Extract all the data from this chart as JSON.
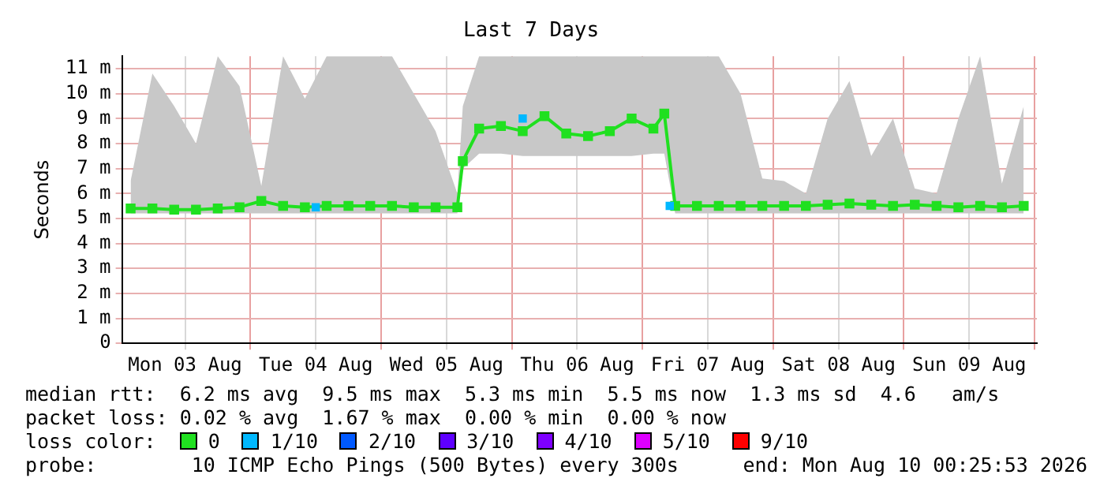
{
  "chart_data": {
    "type": "line",
    "title": "Last 7 Days",
    "ylabel": "Seconds",
    "x": [
      "2026-08-03T02:00",
      "2026-08-03T06:00",
      "2026-08-03T10:00",
      "2026-08-03T14:00",
      "2026-08-03T18:00",
      "2026-08-03T22:00",
      "2026-08-04T02:00",
      "2026-08-04T06:00",
      "2026-08-04T10:00",
      "2026-08-04T14:00",
      "2026-08-04T18:00",
      "2026-08-04T22:00",
      "2026-08-05T02:00",
      "2026-08-05T06:00",
      "2026-08-05T10:00",
      "2026-08-05T14:00",
      "2026-08-05T15:00",
      "2026-08-05T18:00",
      "2026-08-05T22:00",
      "2026-08-06T02:00",
      "2026-08-06T06:00",
      "2026-08-06T10:00",
      "2026-08-06T14:00",
      "2026-08-06T18:00",
      "2026-08-06T22:00",
      "2026-08-07T02:00",
      "2026-08-07T04:00",
      "2026-08-07T06:00",
      "2026-08-07T10:00",
      "2026-08-07T14:00",
      "2026-08-07T18:00",
      "2026-08-07T22:00",
      "2026-08-08T02:00",
      "2026-08-08T06:00",
      "2026-08-08T10:00",
      "2026-08-08T14:00",
      "2026-08-08T18:00",
      "2026-08-08T22:00",
      "2026-08-09T02:00",
      "2026-08-09T06:00",
      "2026-08-09T10:00",
      "2026-08-09T14:00",
      "2026-08-09T18:00",
      "2026-08-09T22:00"
    ],
    "series": [
      {
        "name": "0",
        "color": "#20e020",
        "values": [
          5.4,
          5.4,
          5.35,
          5.35,
          5.4,
          5.45,
          5.7,
          5.5,
          5.45,
          5.5,
          5.5,
          5.5,
          5.5,
          5.45,
          5.45,
          5.45,
          7.3,
          8.6,
          8.7,
          8.5,
          9.1,
          8.4,
          8.3,
          8.5,
          9.0,
          8.6,
          9.2,
          5.5,
          5.5,
          5.5,
          5.5,
          5.5,
          5.5,
          5.5,
          5.55,
          5.6,
          5.55,
          5.5,
          5.55,
          5.5,
          5.45,
          5.5,
          5.45,
          5.5
        ],
        "lower": [
          5.2,
          5.2,
          5.2,
          5.2,
          5.2,
          5.2,
          5.2,
          5.2,
          5.2,
          5.2,
          5.2,
          5.2,
          5.2,
          5.2,
          5.2,
          5.2,
          7.0,
          7.6,
          7.6,
          7.5,
          7.5,
          7.5,
          7.5,
          7.5,
          7.5,
          7.6,
          7.6,
          5.2,
          5.2,
          5.2,
          5.2,
          5.2,
          5.2,
          5.2,
          5.2,
          5.2,
          5.2,
          5.2,
          5.2,
          5.2,
          5.2,
          5.2,
          5.2,
          5.2
        ],
        "upper": [
          6.5,
          10.8,
          9.5,
          8.0,
          11.5,
          10.3,
          6.3,
          11.5,
          9.8,
          11.5,
          11.5,
          11.5,
          11.5,
          10.0,
          8.5,
          6.0,
          9.5,
          11.5,
          11.5,
          11.5,
          11.5,
          11.5,
          11.5,
          11.5,
          11.5,
          11.5,
          11.5,
          11.5,
          11.5,
          11.5,
          10.0,
          6.6,
          6.5,
          6.0,
          9.0,
          10.5,
          7.5,
          9.0,
          6.2,
          6.0,
          9.0,
          11.5,
          6.4,
          9.5
        ]
      },
      {
        "name": "1/10",
        "color": "#00b8ff",
        "type": "scatter",
        "x": [
          "2026-08-04T12:00",
          "2026-08-06T02:00",
          "2026-08-07T05:00"
        ],
        "values": [
          5.45,
          9.0,
          5.5
        ]
      },
      {
        "name": "2/10",
        "color": "#0059ff",
        "type": "scatter",
        "values": [
          null,
          null,
          null,
          null,
          null,
          null,
          null,
          null,
          null,
          null,
          null,
          null,
          null,
          null,
          null,
          null,
          null,
          null,
          null,
          null,
          null,
          null,
          null,
          null,
          null,
          null,
          null,
          null,
          null,
          null,
          null,
          null,
          null,
          null,
          null,
          null,
          null,
          null,
          null,
          null,
          null,
          null,
          null,
          null
        ]
      },
      {
        "name": "3/10",
        "color": "#5e00ff",
        "type": "scatter",
        "values": [
          null,
          null,
          null,
          null,
          null,
          null,
          null,
          null,
          null,
          null,
          null,
          null,
          null,
          null,
          null,
          null,
          null,
          null,
          null,
          null,
          null,
          null,
          null,
          null,
          null,
          null,
          null,
          null,
          null,
          null,
          null,
          null,
          null,
          null,
          null,
          null,
          null,
          null,
          null,
          null,
          null,
          null,
          null,
          null
        ]
      },
      {
        "name": "4/10",
        "color": "#7e00ff",
        "type": "scatter",
        "values": [
          null,
          null,
          null,
          null,
          null,
          null,
          null,
          null,
          null,
          null,
          null,
          null,
          null,
          null,
          null,
          null,
          null,
          null,
          null,
          null,
          null,
          null,
          null,
          null,
          null,
          null,
          null,
          null,
          null,
          null,
          null,
          null,
          null,
          null,
          null,
          null,
          null,
          null,
          null,
          null,
          null,
          null,
          null,
          null
        ]
      },
      {
        "name": "5/10",
        "color": "#dd00ff",
        "type": "scatter",
        "values": [
          null,
          null,
          null,
          null,
          null,
          null,
          null,
          null,
          null,
          null,
          null,
          null,
          null,
          null,
          null,
          null,
          null,
          null,
          null,
          null,
          null,
          null,
          null,
          null,
          null,
          null,
          null,
          null,
          null,
          null,
          null,
          null,
          null,
          null,
          null,
          null,
          null,
          null,
          null,
          null,
          null,
          null,
          null,
          null
        ]
      },
      {
        "name": "9/10",
        "color": "#ff0000",
        "type": "scatter",
        "values": [
          null,
          null,
          null,
          null,
          null,
          null,
          null,
          null,
          null,
          null,
          null,
          null,
          null,
          null,
          null,
          null,
          null,
          null,
          null,
          null,
          null,
          null,
          null,
          null,
          null,
          null,
          null,
          null,
          null,
          null,
          null,
          null,
          null,
          null,
          null,
          null,
          null,
          null,
          null,
          null,
          null,
          null,
          null,
          null
        ]
      }
    ],
    "xlim": [
      "2026-08-03T00:25",
      "2026-08-10T00:25"
    ],
    "xticks": [
      {
        "value": "2026-08-03T12:00",
        "label": "Mon 03 Aug"
      },
      {
        "value": "2026-08-04T00:00",
        "label": null
      },
      {
        "value": "2026-08-04T12:00",
        "label": "Tue 04 Aug"
      },
      {
        "value": "2026-08-05T00:00",
        "label": null
      },
      {
        "value": "2026-08-05T12:00",
        "label": "Wed 05 Aug"
      },
      {
        "value": "2026-08-06T00:00",
        "label": null
      },
      {
        "value": "2026-08-06T12:00",
        "label": "Thu 06 Aug"
      },
      {
        "value": "2026-08-07T00:00",
        "label": null
      },
      {
        "value": "2026-08-07T12:00",
        "label": "Fri 07 Aug"
      },
      {
        "value": "2026-08-08T00:00",
        "label": null
      },
      {
        "value": "2026-08-08T12:00",
        "label": "Sat 08 Aug"
      },
      {
        "value": "2026-08-09T00:00",
        "label": null
      },
      {
        "value": "2026-08-09T12:00",
        "label": "Sun 09 Aug"
      },
      {
        "value": "2026-08-10T00:00",
        "label": null
      }
    ],
    "ylim": [
      0,
      11.5
    ],
    "yticks": [
      0,
      {
        "value": 1,
        "label": "1 m"
      },
      {
        "value": 2,
        "label": "2 m"
      },
      {
        "value": 3,
        "label": "3 m"
      },
      {
        "value": 4,
        "label": "4 m"
      },
      {
        "value": 5,
        "label": "5 m"
      },
      {
        "value": 6,
        "label": "6 m"
      },
      {
        "value": 7,
        "label": "7 m"
      },
      {
        "value": 8,
        "label": "8 m"
      },
      {
        "value": 9,
        "label": "9 m"
      },
      {
        "value": 10,
        "label": "10 m"
      },
      {
        "value": 11,
        "label": "11 m"
      }
    ],
    "grid": true,
    "legend": "bottom",
    "legend_title": "loss color:",
    "marker": "square",
    "annotations": [
      "median rtt:  6.2 ms avg  9.5 ms max  5.3 ms min  5.5 ms now  1.3 ms sd  4.6   am/s",
      "packet loss: 0.02 % avg  1.67 % max  0.00 % min  0.00 % now",
      "probe:        10 ICMP Echo Pings (500 Bytes) every 300s",
      "end: Mon Aug 10 00:25:53 2026"
    ]
  }
}
